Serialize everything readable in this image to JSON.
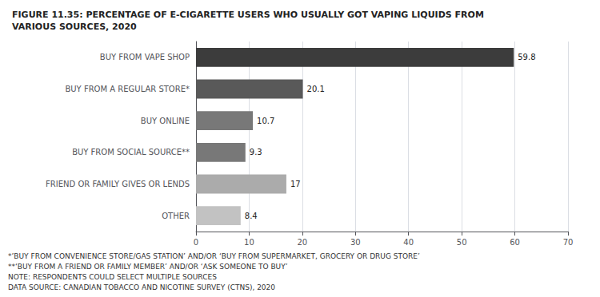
{
  "chart_data": {
    "type": "bar",
    "orientation": "horizontal",
    "title": "FIGURE 11.35: PERCENTAGE OF E-CIGARETTE USERS WHO USUALLY GOT VAPING LIQUIDS FROM\nVARIOUS SOURCES, 2020",
    "categories": [
      "BUY FROM VAPE SHOP",
      "BUY FROM A REGULAR STORE*",
      "BUY ONLINE",
      "BUY FROM SOCIAL SOURCE**",
      "FRIEND OR FAMILY GIVES OR LENDS",
      "OTHER"
    ],
    "values": [
      59.8,
      20.1,
      10.7,
      9.3,
      17.0,
      8.4
    ],
    "colors": [
      "#3c3c3c",
      "#595959",
      "#787878",
      "#787878",
      "#ababab",
      "#c2c2c2"
    ],
    "xlim": [
      0,
      70
    ],
    "xticks": [
      0,
      10,
      20,
      30,
      40,
      50,
      60,
      70
    ],
    "grid": true,
    "data_labels": true,
    "annotations": [
      "*’BUY FROM CONVENIENCE STORE/GAS STATION’ AND/OR ‘BUY FROM SUPERMARKET, GROCERY OR DRUG STORE’",
      "**‘BUY FROM A FRIEND OR FAMILY MEMBER’ AND/OR ‘ASK SOMEONE TO BUY’",
      "NOTE: RESPONDENTS COULD SELECT MULTIPLE SOURCES",
      "DATA SOURCE: CANADIAN TOBACCO AND NICOTINE SURVEY (CTNS), 2020"
    ]
  }
}
